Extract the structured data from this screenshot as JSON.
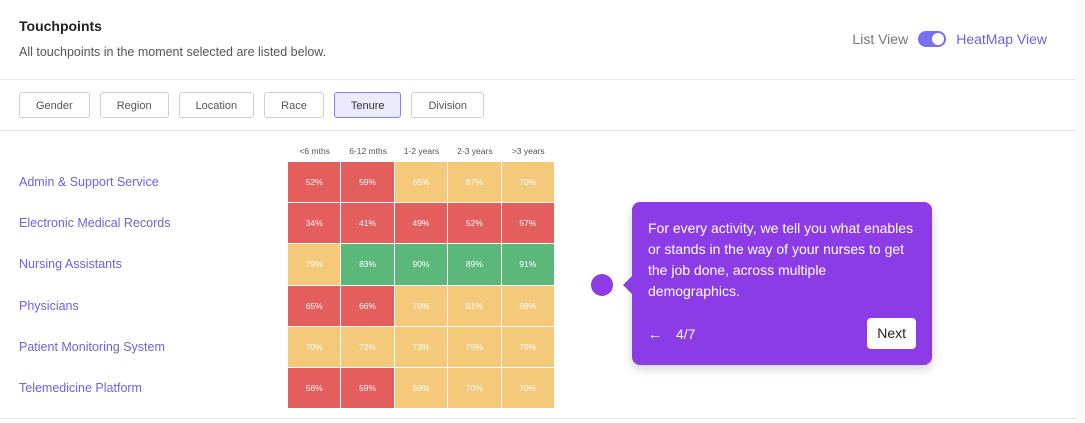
{
  "header": {
    "title": "Touchpoints",
    "subtitle": "All touchpoints in the moment selected are listed below."
  },
  "view_toggle": {
    "list_label": "List View",
    "heatmap_label": "HeatMap View",
    "active": "heatmap"
  },
  "filters": {
    "items": [
      "Gender",
      "Region",
      "Location",
      "Race",
      "Tenure",
      "Division"
    ],
    "active": "Tenure"
  },
  "heatmap": {
    "columns": [
      "<6 mths",
      "6-12 mths",
      "1-2 years",
      "2-3 years",
      ">3 years"
    ],
    "rows": [
      {
        "label": "Admin & Support Service",
        "values": [
          "52%",
          "59%",
          "65%",
          "67%",
          "70%"
        ],
        "colors": [
          "#e35e5c",
          "#e35e5c",
          "#f5c97a",
          "#f5c97a",
          "#f5c97a"
        ]
      },
      {
        "label": "Electronic Medical Records",
        "values": [
          "34%",
          "41%",
          "49%",
          "52%",
          "57%"
        ],
        "colors": [
          "#e35e5c",
          "#e35e5c",
          "#e35e5c",
          "#e35e5c",
          "#e35e5c"
        ]
      },
      {
        "label": "Nursing Assistants",
        "values": [
          "79%",
          "83%",
          "90%",
          "89%",
          "91%"
        ],
        "colors": [
          "#f5c97a",
          "#5cb87a",
          "#5cb87a",
          "#5cb87a",
          "#5cb87a"
        ]
      },
      {
        "label": "Physicians",
        "values": [
          "65%",
          "66%",
          "70%",
          "61%",
          "59%"
        ],
        "colors": [
          "#e35e5c",
          "#e35e5c",
          "#f5c97a",
          "#f5c97a",
          "#f5c97a"
        ]
      },
      {
        "label": "Patient Monitoring System",
        "values": [
          "70%",
          "72%",
          "73%",
          "75%",
          "79%"
        ],
        "colors": [
          "#f5c97a",
          "#f5c97a",
          "#f5c97a",
          "#f5c97a",
          "#f5c97a"
        ]
      },
      {
        "label": "Telemedicine Platform",
        "values": [
          "56%",
          "59%",
          "69%",
          "70%",
          "70%"
        ],
        "colors": [
          "#e35e5c",
          "#e35e5c",
          "#f5c97a",
          "#f5c97a",
          "#f5c97a"
        ]
      }
    ]
  },
  "tooltip": {
    "text": "For every activity, we tell you what enables or stands in the way of your nurses to get the job done, across multiple demographics.",
    "step": "4/7",
    "back_icon": "arrow-left-icon",
    "next_label": "Next"
  },
  "colors": {
    "accent": "#6e62e2",
    "tooltip_bg": "#8c3ce6",
    "red": "#e35e5c",
    "yellow": "#f5c97a",
    "green": "#5cb87a"
  }
}
